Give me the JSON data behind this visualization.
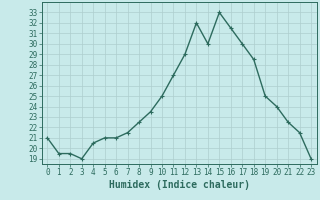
{
  "x": [
    0,
    1,
    2,
    3,
    4,
    5,
    6,
    7,
    8,
    9,
    10,
    11,
    12,
    13,
    14,
    15,
    16,
    17,
    18,
    19,
    20,
    21,
    22,
    23
  ],
  "y": [
    21.0,
    19.5,
    19.5,
    19.0,
    20.5,
    21.0,
    21.0,
    21.5,
    22.5,
    23.5,
    25.0,
    27.0,
    29.0,
    32.0,
    30.0,
    33.0,
    31.5,
    30.0,
    28.5,
    25.0,
    24.0,
    22.5,
    21.5,
    19.0
  ],
  "line_color": "#2d6b5e",
  "marker": "+",
  "bg_color": "#c8eaea",
  "grid_color": "#aecece",
  "xlabel": "Humidex (Indice chaleur)",
  "xlim": [
    -0.5,
    23.5
  ],
  "ylim": [
    18.5,
    34.0
  ],
  "yticks": [
    19,
    20,
    21,
    22,
    23,
    24,
    25,
    26,
    27,
    28,
    29,
    30,
    31,
    32,
    33
  ],
  "xticks": [
    0,
    1,
    2,
    3,
    4,
    5,
    6,
    7,
    8,
    9,
    10,
    11,
    12,
    13,
    14,
    15,
    16,
    17,
    18,
    19,
    20,
    21,
    22,
    23
  ],
  "tick_color": "#2d6b5e",
  "label_color": "#2d6b5e",
  "font_size_xlabel": 7,
  "font_size_ytick": 5.5,
  "font_size_xtick": 5.5,
  "linewidth": 1.0,
  "markersize": 3,
  "markeredgewidth": 0.8
}
